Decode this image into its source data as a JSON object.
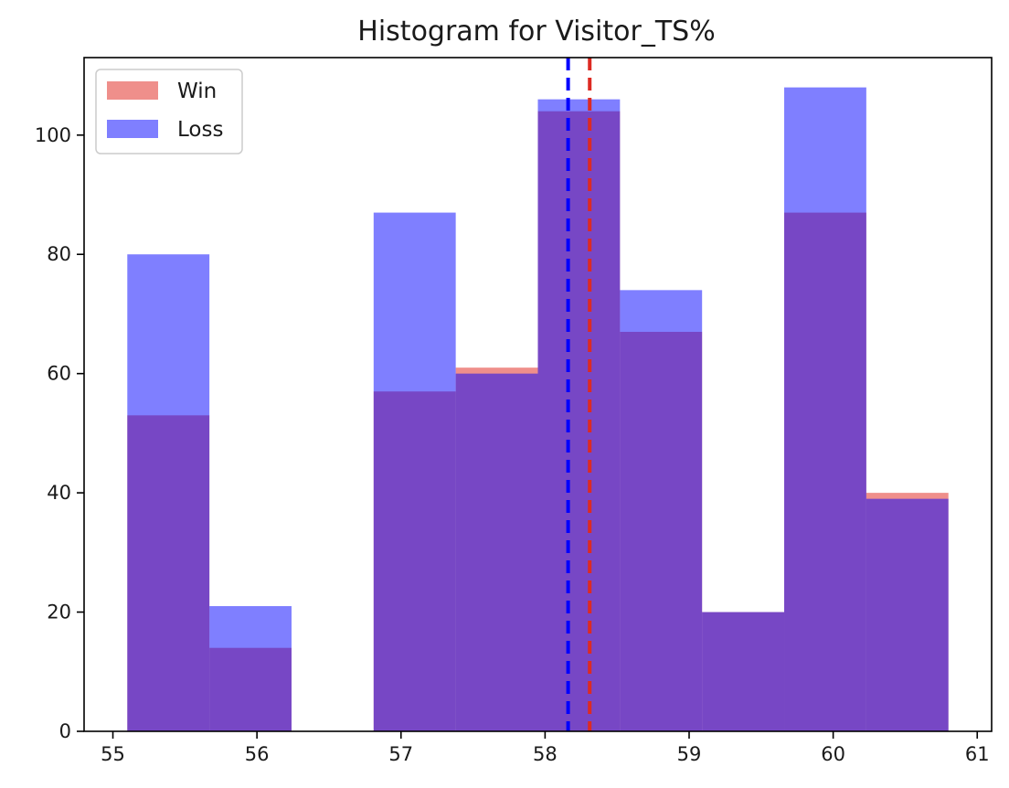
{
  "chart_data": {
    "type": "bar",
    "title": "Histogram for Visitor_TS%",
    "xlabel": "",
    "ylabel": "",
    "xlim": [
      54.8,
      61.1
    ],
    "ylim": [
      0,
      113
    ],
    "xticks": [
      55,
      56,
      57,
      58,
      59,
      60,
      61
    ],
    "yticks": [
      0,
      20,
      40,
      60,
      80,
      100
    ],
    "bin_edges": [
      55.1,
      55.67,
      56.24,
      56.81,
      57.38,
      57.95,
      58.52,
      59.09,
      59.66,
      60.23,
      60.8
    ],
    "series": [
      {
        "name": "Win",
        "color": "#e8605a",
        "opacity": 0.7,
        "values": [
          53,
          14,
          0,
          57,
          61,
          104,
          67,
          20,
          87,
          40
        ],
        "mean": 58.31
      },
      {
        "name": "Loss",
        "color": "#0000ff",
        "opacity": 0.5,
        "values": [
          80,
          21,
          0,
          87,
          60,
          106,
          74,
          20,
          108,
          39
        ],
        "mean": 58.16
      }
    ],
    "legend_position": "upper left",
    "grid": false
  }
}
